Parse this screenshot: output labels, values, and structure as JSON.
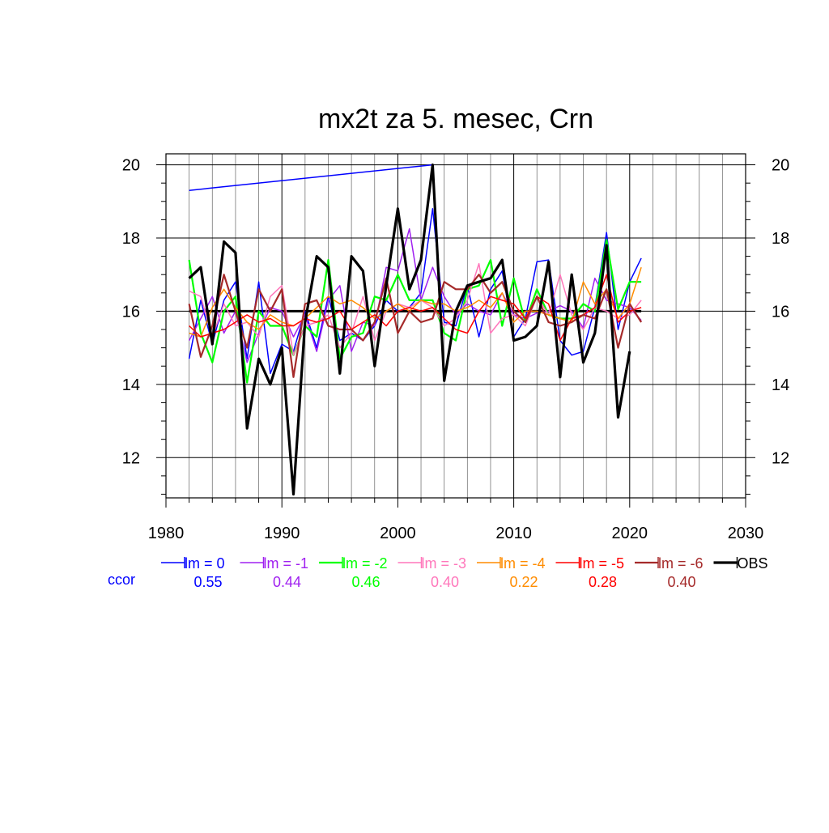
{
  "chart_data": {
    "type": "line",
    "title": "mx2t za 5. mesec, Crn",
    "xlabel": "",
    "ylabel": "",
    "xlim": [
      1980,
      2030
    ],
    "ylim": [
      10.9,
      20.3
    ],
    "xticks": [
      1980,
      1990,
      2000,
      2010,
      2020,
      2030
    ],
    "yticks": [
      12,
      14,
      16,
      18,
      20
    ],
    "xtick_labels": [
      "1980",
      "1990",
      "2000",
      "2010",
      "2020",
      "2030"
    ],
    "ytick_labels": [
      "12",
      "14",
      "16",
      "18",
      "20"
    ],
    "grid": true,
    "reference_line": 16,
    "ccor_label": "ccor",
    "ccor_label_color": "#0000ff",
    "series": [
      {
        "name": "lm = 0",
        "color": "#0000ff",
        "width": 1.5,
        "ccor": "0.55",
        "x": [
          1982,
          1983,
          1984,
          1985,
          1986,
          1987,
          1988,
          1989,
          1990,
          1991,
          1992,
          1993,
          1994,
          1995,
          1996,
          1997,
          1998,
          1999,
          2000,
          2001,
          2002,
          2003,
          2004,
          2005,
          2006,
          2007,
          2008,
          2009,
          2010,
          2011,
          2012,
          2013,
          2014,
          2015,
          2016,
          2017,
          2018,
          2019,
          2020,
          2021
        ],
        "values": [
          14.7,
          16.3,
          15.1,
          16.3,
          16.8,
          14.7,
          16.8,
          14.3,
          15.1,
          14.9,
          16.0,
          15.0,
          16.4,
          15.2,
          15.4,
          15.2,
          15.6,
          16.3,
          16.0,
          16.1,
          16.5,
          18.8,
          15.7,
          15.6,
          16.7,
          15.3,
          16.6,
          17.1,
          15.3,
          15.8,
          17.35,
          17.4,
          15.2,
          14.8,
          14.9,
          16.1,
          18.15,
          15.5,
          16.8,
          17.45
        ]
      },
      {
        "name": "lm = -1",
        "color": "#a020f0",
        "width": 1.5,
        "ccor": "0.44",
        "x": [
          1982,
          1983,
          1984,
          1985,
          1986,
          1987,
          1988,
          1989,
          1990,
          1991,
          1992,
          1993,
          1994,
          1995,
          1996,
          1997,
          1998,
          1999,
          2000,
          2001,
          2002,
          2003,
          2004,
          2005,
          2006,
          2007,
          2008,
          2009,
          2010,
          2011,
          2012,
          2013,
          2014,
          2015,
          2016,
          2017,
          2018,
          2019,
          2020,
          2021
        ],
        "values": [
          15.2,
          15.8,
          16.4,
          15.4,
          16.0,
          14.6,
          15.4,
          16.1,
          16.0,
          15.3,
          15.9,
          14.9,
          16.3,
          16.7,
          14.9,
          15.7,
          15.6,
          17.2,
          17.1,
          18.25,
          16.3,
          17.2,
          16.4,
          15.9,
          16.2,
          16.0,
          15.9,
          16.5,
          15.9,
          15.8,
          15.95,
          16.0,
          16.15,
          16.0,
          15.55,
          16.9,
          16.3,
          16.2,
          16.1,
          15.75
        ]
      },
      {
        "name": "lm = -2",
        "color": "#00ff00",
        "width": 2.2,
        "ccor": "0.46",
        "x": [
          1982,
          1983,
          1984,
          1985,
          1986,
          1987,
          1988,
          1989,
          1990,
          1991,
          1992,
          1993,
          1994,
          1995,
          1996,
          1997,
          1998,
          1999,
          2000,
          2001,
          2002,
          2003,
          2004,
          2005,
          2006,
          2007,
          2008,
          2009,
          2010,
          2011,
          2012,
          2013,
          2014,
          2015,
          2016,
          2017,
          2018,
          2019,
          2020,
          2021
        ],
        "values": [
          17.4,
          15.4,
          14.6,
          16.0,
          16.4,
          14.05,
          16.0,
          15.6,
          15.6,
          14.8,
          15.6,
          15.3,
          17.4,
          14.7,
          15.3,
          15.4,
          16.4,
          16.3,
          17.0,
          16.3,
          16.3,
          16.3,
          15.4,
          15.2,
          16.6,
          16.7,
          17.4,
          15.6,
          16.9,
          15.7,
          16.6,
          15.9,
          15.8,
          15.8,
          16.2,
          16.0,
          17.95,
          16.05,
          16.8,
          16.8
        ]
      },
      {
        "name": "lm = -3",
        "color": "#ff77bb",
        "width": 1.5,
        "ccor": "0.40",
        "x": [
          1982,
          1983,
          1984,
          1985,
          1986,
          1987,
          1988,
          1989,
          1990,
          1991,
          1992,
          1993,
          1994,
          1995,
          1996,
          1997,
          1998,
          1999,
          2000,
          2001,
          2002,
          2003,
          2004,
          2005,
          2006,
          2007,
          2008,
          2009,
          2010,
          2011,
          2012,
          2013,
          2014,
          2015,
          2016,
          2017,
          2018,
          2019,
          2020,
          2021
        ],
        "values": [
          16.55,
          16.4,
          15.3,
          16.2,
          15.6,
          15.7,
          15.3,
          16.4,
          16.7,
          14.8,
          15.6,
          15.7,
          15.9,
          15.0,
          15.4,
          16.4,
          15.2,
          16.0,
          16.2,
          16.1,
          16.3,
          16.1,
          15.6,
          15.8,
          16.3,
          17.3,
          15.4,
          15.8,
          15.9,
          15.6,
          16.4,
          15.9,
          17.0,
          15.9,
          15.5,
          16.1,
          16.0,
          15.8,
          15.9,
          16.3
        ]
      },
      {
        "name": "lm = -4",
        "color": "#ff8c00",
        "width": 1.5,
        "ccor": "0.22",
        "x": [
          1982,
          1983,
          1984,
          1985,
          1986,
          1987,
          1988,
          1989,
          1990,
          1991,
          1992,
          1993,
          1994,
          1995,
          1996,
          1997,
          1998,
          1999,
          2000,
          2001,
          2002,
          2003,
          2004,
          2005,
          2006,
          2007,
          2008,
          2009,
          2010,
          2011,
          2012,
          2013,
          2014,
          2015,
          2016,
          2017,
          2018,
          2019,
          2020,
          2021
        ],
        "values": [
          15.4,
          15.3,
          16.1,
          16.6,
          16.1,
          15.7,
          15.5,
          15.9,
          15.7,
          15.6,
          15.8,
          16.1,
          16.4,
          16.2,
          16.3,
          16.1,
          15.8,
          16.0,
          16.2,
          16.0,
          16.3,
          16.2,
          16.2,
          16.0,
          16.1,
          16.3,
          16.1,
          16.5,
          15.7,
          16.0,
          16.0,
          15.9,
          15.8,
          15.7,
          16.8,
          16.2,
          16.6,
          15.8,
          16.2,
          17.2
        ]
      },
      {
        "name": "lm = -5",
        "color": "#ff0000",
        "width": 1.5,
        "ccor": "0.28",
        "x": [
          1982,
          1983,
          1984,
          1985,
          1986,
          1987,
          1988,
          1989,
          1990,
          1991,
          1992,
          1993,
          1994,
          1995,
          1996,
          1997,
          1998,
          1999,
          2000,
          2001,
          2002,
          2003,
          2004,
          2005,
          2006,
          2007,
          2008,
          2009,
          2010,
          2011,
          2012,
          2013,
          2014,
          2015,
          2016,
          2017,
          2018,
          2019,
          2020,
          2021
        ],
        "values": [
          15.6,
          15.3,
          15.4,
          15.5,
          15.7,
          15.9,
          15.7,
          15.8,
          15.6,
          15.6,
          15.8,
          15.7,
          15.8,
          16.0,
          15.5,
          15.7,
          15.9,
          15.6,
          16.0,
          16.1,
          16.0,
          16.1,
          15.8,
          15.5,
          15.4,
          16.0,
          16.4,
          16.3,
          16.2,
          15.8,
          16.4,
          16.2,
          15.2,
          15.8,
          15.9,
          16.1,
          17.0,
          15.7,
          16.0,
          16.1
        ]
      },
      {
        "name": "lm = -6",
        "color": "#a52a2a",
        "width": 2.2,
        "ccor": "0.40",
        "x": [
          1982,
          1983,
          1984,
          1985,
          1986,
          1987,
          1988,
          1989,
          1990,
          1991,
          1992,
          1993,
          1994,
          1995,
          1996,
          1997,
          1998,
          1999,
          2000,
          2001,
          2002,
          2003,
          2004,
          2005,
          2006,
          2007,
          2008,
          2009,
          2010,
          2011,
          2012,
          2013,
          2014,
          2015,
          2016,
          2017,
          2018,
          2019,
          2020,
          2021
        ],
        "values": [
          16.2,
          14.75,
          15.6,
          17.0,
          16.0,
          15.0,
          16.6,
          16.0,
          16.6,
          14.2,
          16.2,
          16.3,
          15.6,
          15.5,
          15.5,
          15.2,
          15.7,
          16.9,
          15.4,
          16.0,
          15.7,
          15.8,
          16.8,
          16.6,
          16.6,
          17.0,
          16.5,
          16.8,
          16.0,
          15.7,
          16.4,
          15.7,
          15.6,
          15.7,
          15.9,
          15.8,
          16.6,
          15.0,
          16.2,
          15.7
        ]
      },
      {
        "name": "OBS",
        "color": "#000000",
        "width": 3.2,
        "ccor": "",
        "x": [
          1982,
          1983,
          1984,
          1985,
          1986,
          1987,
          1988,
          1989,
          1990,
          1991,
          1992,
          1993,
          1994,
          1995,
          1996,
          1997,
          1998,
          1999,
          2000,
          2001,
          2002,
          2003,
          2004,
          2005,
          2006,
          2007,
          2008,
          2009,
          2010,
          2011,
          2012,
          2013,
          2014,
          2015,
          2016,
          2017,
          2018,
          2019,
          2020
        ],
        "values": [
          16.9,
          17.2,
          15.1,
          17.9,
          17.6,
          12.8,
          14.7,
          14.0,
          15.0,
          11.0,
          15.7,
          17.5,
          17.2,
          14.3,
          17.5,
          17.1,
          14.5,
          16.7,
          18.8,
          16.6,
          17.4,
          20.0,
          14.1,
          16.0,
          16.7,
          16.8,
          16.9,
          17.4,
          15.2,
          15.3,
          15.6,
          17.35,
          14.2,
          17.0,
          14.6,
          15.4,
          17.8,
          13.1,
          14.9
        ]
      },
      {
        "name": "",
        "color": "#0000ff",
        "width": 1.5,
        "ccor": "",
        "legend": false,
        "x": [
          1982,
          2003
        ],
        "values": [
          19.3,
          20.0
        ]
      }
    ]
  }
}
